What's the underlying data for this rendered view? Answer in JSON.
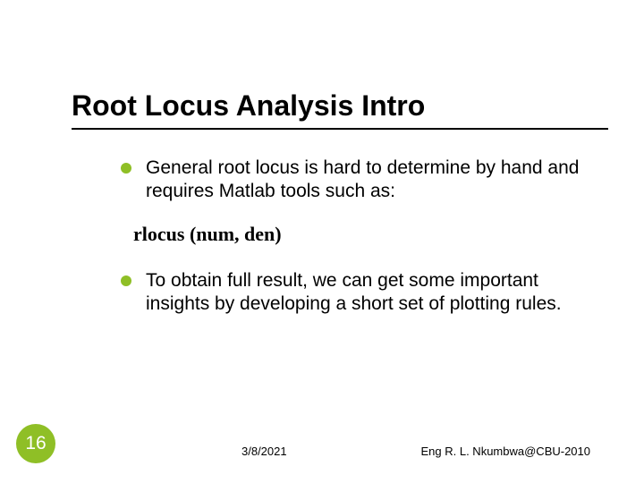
{
  "title": "Root Locus Analysis Intro",
  "bullets": [
    {
      "text": "General root locus is hard to determine by hand and requires Matlab tools such as:",
      "code_after": "rlocus (num, den)"
    },
    {
      "text": "To obtain full result, we can get some important insights by developing a short set of plotting rules.",
      "code_after": null
    }
  ],
  "colors": {
    "accent": "#8fbf26",
    "text": "#000000",
    "bg": "#ffffff",
    "slide_num_text": "#ffffff"
  },
  "footer": {
    "slide_number": "16",
    "date": "3/8/2021",
    "author": "Eng R. L. Nkumbwa@CBU-2010"
  }
}
